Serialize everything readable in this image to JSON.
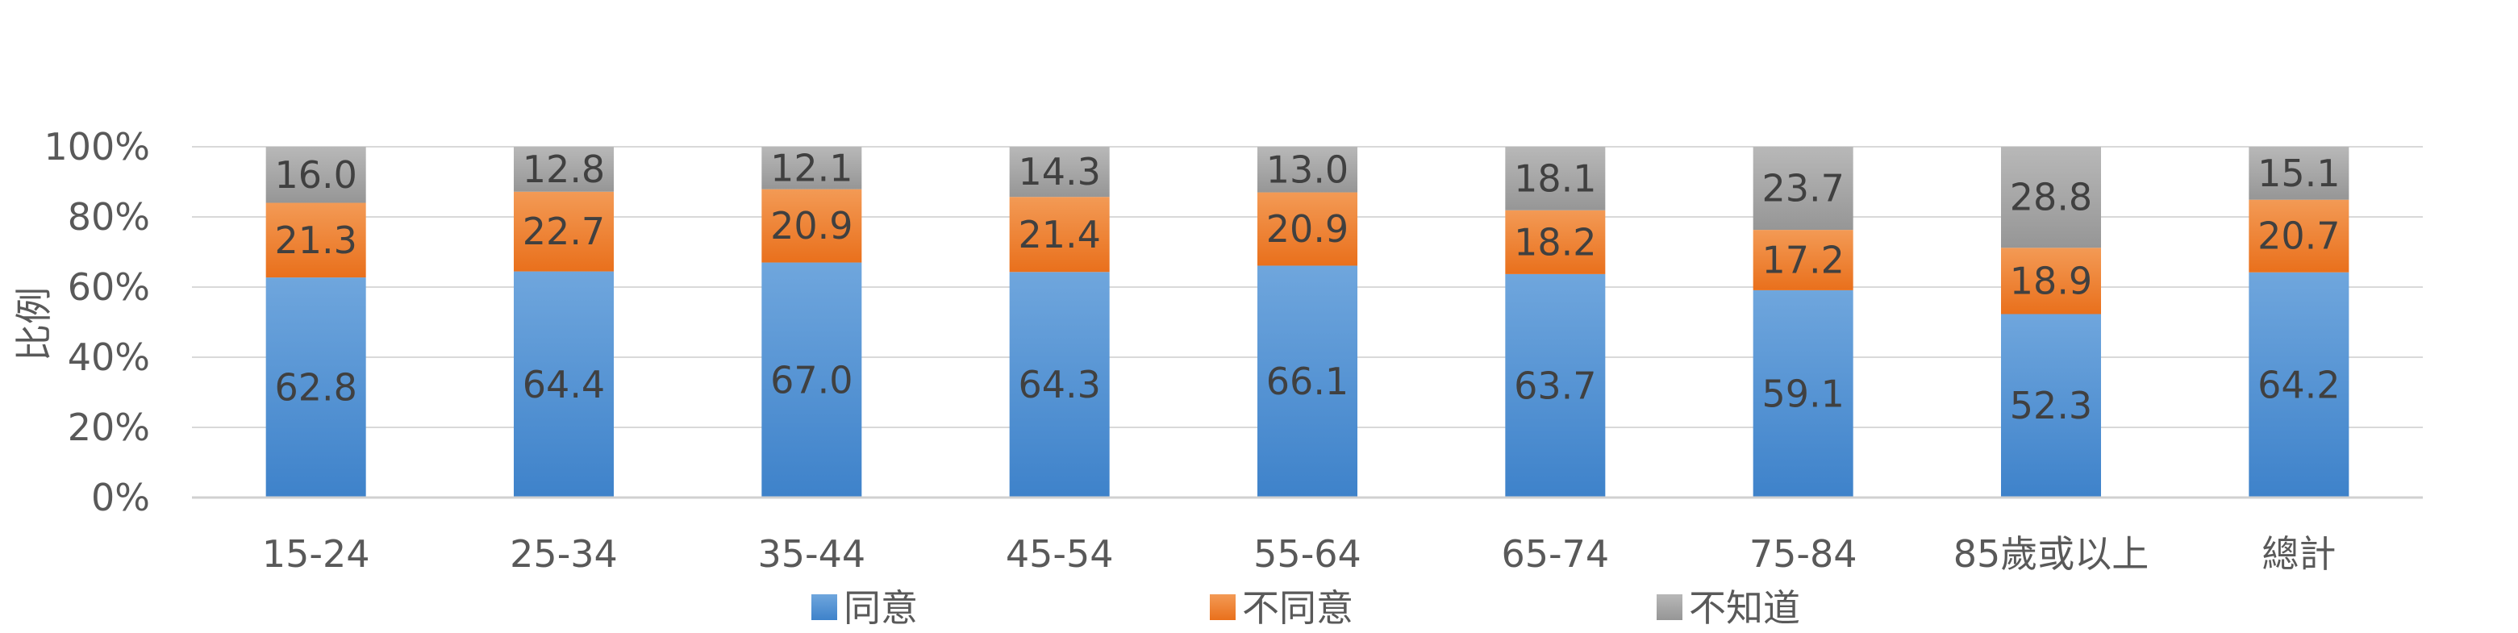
{
  "chart_data": {
    "type": "bar",
    "stacked": true,
    "stack_mode": "percent",
    "categories": [
      "15-24",
      "25-34",
      "35-44",
      "45-54",
      "55-64",
      "65-74",
      "75-84",
      "85歲或以上",
      "總計"
    ],
    "series": [
      {
        "name": "同意",
        "color": "#4A8BD0",
        "values": [
          62.8,
          64.4,
          67.0,
          64.3,
          66.1,
          63.7,
          59.1,
          52.3,
          64.2
        ]
      },
      {
        "name": "不同意",
        "color": "#EF7A27",
        "values": [
          21.3,
          22.7,
          20.9,
          21.4,
          20.9,
          18.2,
          17.2,
          18.9,
          20.7
        ]
      },
      {
        "name": "不知道",
        "color": "#A5A5A5",
        "values": [
          16.0,
          12.8,
          12.1,
          14.3,
          13.0,
          18.1,
          23.7,
          28.8,
          15.1
        ]
      }
    ],
    "ylabel": "比例",
    "xlabel": "",
    "ylim": [
      0,
      100
    ],
    "y_ticks": [
      "0%",
      "20%",
      "40%",
      "60%",
      "80%",
      "100%"
    ],
    "grid": true,
    "legend_position": "bottom"
  }
}
